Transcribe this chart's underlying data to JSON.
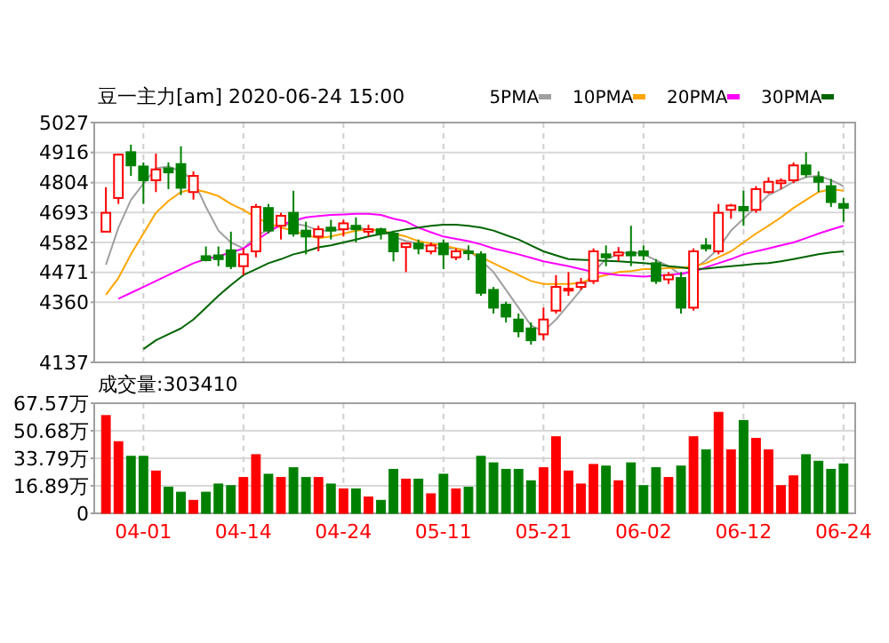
{
  "chart_data": [
    {
      "type": "candlestick",
      "title": "豆一主力[am] 2020-06-24 15:00",
      "categories": [
        null,
        null,
        null,
        null,
        null,
        null,
        null,
        null,
        null,
        null,
        null,
        null,
        null,
        null,
        null,
        null,
        null,
        null,
        null,
        null,
        null,
        null,
        null,
        null,
        null,
        null,
        null,
        null,
        null,
        null,
        null,
        null,
        null,
        null,
        null,
        null,
        null,
        null,
        null,
        null,
        null,
        null,
        null,
        null,
        null,
        null,
        null,
        null,
        null,
        null,
        null,
        null,
        null,
        null,
        null,
        null,
        null,
        null,
        null,
        null
      ],
      "ohlc": [
        [
          4622,
          4787,
          4622,
          4692
        ],
        [
          4747,
          4912,
          4725,
          4908
        ],
        [
          4917,
          4945,
          4829,
          4868
        ],
        [
          4864,
          4879,
          4725,
          4813
        ],
        [
          4813,
          4912,
          4769,
          4853
        ],
        [
          4857,
          4879,
          4780,
          4842
        ],
        [
          4873,
          4939,
          4758,
          4785
        ],
        [
          4769,
          4846,
          4741,
          4829
        ],
        [
          4531,
          4567,
          4512,
          4516
        ],
        [
          4534,
          4567,
          4494,
          4520
        ],
        [
          4553,
          4622,
          4483,
          4494
        ],
        [
          4494,
          4560,
          4461,
          4538
        ],
        [
          4549,
          4725,
          4527,
          4714
        ],
        [
          4710,
          4725,
          4615,
          4626
        ],
        [
          4644,
          4692,
          4593,
          4681
        ],
        [
          4692,
          4774,
          4604,
          4615
        ],
        [
          4626,
          4659,
          4538,
          4604
        ],
        [
          4604,
          4644,
          4549,
          4631
        ],
        [
          4637,
          4666,
          4593,
          4626
        ],
        [
          4631,
          4666,
          4604,
          4653
        ],
        [
          4644,
          4675,
          4582,
          4631
        ],
        [
          4622,
          4648,
          4604,
          4631
        ],
        [
          4631,
          4637,
          4593,
          4615
        ],
        [
          4615,
          4626,
          4512,
          4549
        ],
        [
          4565,
          4582,
          4472,
          4578
        ],
        [
          4578,
          4593,
          4538,
          4560
        ],
        [
          4549,
          4582,
          4538,
          4571
        ],
        [
          4578,
          4593,
          4483,
          4538
        ],
        [
          4527,
          4560,
          4516,
          4549
        ],
        [
          4549,
          4571,
          4516,
          4542
        ],
        [
          4538,
          4549,
          4384,
          4395
        ],
        [
          4406,
          4417,
          4318,
          4340
        ],
        [
          4351,
          4362,
          4285,
          4307
        ],
        [
          4296,
          4318,
          4230,
          4252
        ],
        [
          4263,
          4285,
          4203,
          4219
        ],
        [
          4241,
          4340,
          4219,
          4296
        ],
        [
          4329,
          4461,
          4318,
          4417
        ],
        [
          4406,
          4472,
          4384,
          4410
        ],
        [
          4417,
          4450,
          4406,
          4432
        ],
        [
          4439,
          4560,
          4428,
          4549
        ],
        [
          4538,
          4571,
          4494,
          4527
        ],
        [
          4534,
          4565,
          4512,
          4545
        ],
        [
          4545,
          4644,
          4494,
          4534
        ],
        [
          4549,
          4571,
          4516,
          4534
        ],
        [
          4505,
          4520,
          4428,
          4439
        ],
        [
          4445,
          4472,
          4428,
          4461
        ],
        [
          4450,
          4472,
          4318,
          4340
        ],
        [
          4340,
          4560,
          4329,
          4549
        ],
        [
          4571,
          4598,
          4549,
          4560
        ],
        [
          4549,
          4725,
          4538,
          4692
        ],
        [
          4703,
          4725,
          4670,
          4719
        ],
        [
          4714,
          4774,
          4644,
          4701
        ],
        [
          4703,
          4791,
          4692,
          4780
        ],
        [
          4769,
          4824,
          4763,
          4807
        ],
        [
          4802,
          4820,
          4780,
          4811
        ],
        [
          4813,
          4879,
          4802,
          4868
        ],
        [
          4868,
          4917,
          4824,
          4835
        ],
        [
          4824,
          4846,
          4769,
          4807
        ],
        [
          4791,
          4818,
          4714,
          4732
        ],
        [
          4725,
          4747,
          4659,
          4710
        ]
      ],
      "colors": [
        "#ff0000",
        "#ff0000",
        "#008000",
        "#008000",
        "#ff0000",
        "#008000",
        "#008000",
        "#ff0000",
        "#008000",
        "#008000",
        "#008000",
        "#ff0000",
        "#ff0000",
        "#008000",
        "#ff0000",
        "#008000",
        "#008000",
        "#ff0000",
        "#008000",
        "#ff0000",
        "#008000",
        "#ff0000",
        "#008000",
        "#008000",
        "#ff0000",
        "#008000",
        "#ff0000",
        "#008000",
        "#ff0000",
        "#008000",
        "#008000",
        "#008000",
        "#008000",
        "#008000",
        "#008000",
        "#ff0000",
        "#ff0000",
        "#ff0000",
        "#ff0000",
        "#ff0000",
        "#008000",
        "#ff0000",
        "#008000",
        "#008000",
        "#008000",
        "#ff0000",
        "#008000",
        "#ff0000",
        "#008000",
        "#ff0000",
        "#ff0000",
        "#008000",
        "#ff0000",
        "#ff0000",
        "#ff0000",
        "#ff0000",
        "#008000",
        "#008000",
        "#008000",
        "#008000"
      ],
      "series": [
        {
          "type": "line",
          "name": "5PMA",
          "color": "#a0a0a0",
          "values": [
            4499,
            4637,
            4740,
            4800,
            4857,
            4864,
            4846,
            4813,
            4714,
            4626,
            4582,
            4560,
            4604,
            4631,
            4644,
            4653,
            4644,
            4626,
            4626,
            4631,
            4637,
            4631,
            4626,
            4604,
            4587,
            4578,
            4564,
            4560,
            4560,
            4553,
            4516,
            4472,
            4406,
            4340,
            4274,
            4252,
            4296,
            4351,
            4406,
            4472,
            4520,
            4538,
            4549,
            4538,
            4516,
            4494,
            4461,
            4483,
            4516,
            4560,
            4626,
            4670,
            4714,
            4758,
            4780,
            4807,
            4824,
            4829,
            4813,
            4791
          ]
        },
        {
          "type": "line",
          "name": "10PMA",
          "color": "#ffa500",
          "values": [
            4388,
            4450,
            4538,
            4615,
            4692,
            4736,
            4769,
            4780,
            4769,
            4754,
            4725,
            4703,
            4675,
            4653,
            4637,
            4626,
            4609,
            4598,
            4604,
            4615,
            4626,
            4631,
            4626,
            4615,
            4604,
            4587,
            4578,
            4571,
            4560,
            4549,
            4527,
            4505,
            4483,
            4461,
            4439,
            4428,
            4428,
            4428,
            4432,
            4450,
            4461,
            4472,
            4476,
            4483,
            4483,
            4487,
            4487,
            4494,
            4505,
            4527,
            4549,
            4582,
            4615,
            4644,
            4675,
            4710,
            4740,
            4769,
            4780,
            4774
          ]
        },
        {
          "type": "line",
          "name": "20PMA",
          "color": "#ff00ff",
          "values": [
            null,
            4373,
            4395,
            4417,
            4439,
            4461,
            4483,
            4505,
            4520,
            4531,
            4545,
            4560,
            4590,
            4620,
            4648,
            4662,
            4675,
            4680,
            4684,
            4686,
            4688,
            4688,
            4684,
            4670,
            4660,
            4637,
            4620,
            4604,
            4595,
            4587,
            4575,
            4560,
            4549,
            4538,
            4525,
            4512,
            4503,
            4494,
            4483,
            4472,
            4467,
            4461,
            4458,
            4455,
            4458,
            4461,
            4467,
            4472,
            4490,
            4505,
            4520,
            4538,
            4549,
            4560,
            4571,
            4582,
            4598,
            4615,
            4630,
            4644
          ]
        },
        {
          "type": "line",
          "name": "30PMA",
          "color": "#006400",
          "values": [
            null,
            null,
            null,
            4186,
            4219,
            4241,
            4263,
            4296,
            4340,
            4384,
            4424,
            4461,
            4483,
            4505,
            4520,
            4538,
            4549,
            4564,
            4571,
            4582,
            4593,
            4604,
            4613,
            4622,
            4631,
            4637,
            4644,
            4648,
            4648,
            4644,
            4637,
            4626,
            4609,
            4593,
            4571,
            4549,
            4534,
            4520,
            4518,
            4516,
            4514,
            4512,
            4509,
            4505,
            4501,
            4494,
            4490,
            4483,
            4485,
            4490,
            4494,
            4498,
            4503,
            4505,
            4512,
            4520,
            4529,
            4538,
            4545,
            4549
          ]
        }
      ],
      "ylim": [
        4137,
        5027
      ],
      "yticks": [
        4137,
        4360,
        4471,
        4582,
        4693,
        4804,
        4916,
        5027
      ],
      "grid": true,
      "legend": "top right",
      "tick_labels": "y"
    },
    {
      "type": "bar",
      "title": "成交量:303410",
      "categories": [
        null,
        null,
        null,
        "04-01",
        null,
        null,
        null,
        null,
        null,
        null,
        null,
        "04-14",
        null,
        null,
        null,
        null,
        null,
        null,
        null,
        "04-24",
        null,
        null,
        null,
        null,
        null,
        null,
        null,
        "05-11",
        null,
        null,
        null,
        null,
        null,
        null,
        null,
        "05-21",
        null,
        null,
        null,
        null,
        null,
        null,
        null,
        "06-02",
        null,
        null,
        null,
        null,
        null,
        null,
        null,
        "06-12",
        null,
        null,
        null,
        null,
        null,
        null,
        null,
        "06-24"
      ],
      "values": [
        60,
        44,
        35,
        35,
        26,
        16,
        13,
        8,
        13,
        18,
        17,
        22,
        36,
        24,
        22,
        28,
        22,
        22,
        18,
        15,
        15,
        10,
        8,
        27,
        21,
        21,
        12,
        24,
        15,
        16,
        35,
        31,
        27,
        27,
        20,
        28,
        47,
        26,
        18,
        30,
        29,
        20,
        31,
        17,
        28,
        22,
        29,
        47,
        39,
        62,
        39,
        57,
        46,
        39,
        17,
        23,
        36,
        32,
        27,
        30.34
      ],
      "colors": [
        "#ff0000",
        "#ff0000",
        "#008000",
        "#008000",
        "#ff0000",
        "#008000",
        "#008000",
        "#ff0000",
        "#008000",
        "#008000",
        "#008000",
        "#ff0000",
        "#ff0000",
        "#008000",
        "#ff0000",
        "#008000",
        "#008000",
        "#ff0000",
        "#008000",
        "#ff0000",
        "#008000",
        "#ff0000",
        "#008000",
        "#008000",
        "#ff0000",
        "#008000",
        "#ff0000",
        "#008000",
        "#ff0000",
        "#008000",
        "#008000",
        "#008000",
        "#008000",
        "#008000",
        "#008000",
        "#ff0000",
        "#ff0000",
        "#ff0000",
        "#ff0000",
        "#ff0000",
        "#008000",
        "#ff0000",
        "#008000",
        "#008000",
        "#008000",
        "#ff0000",
        "#008000",
        "#ff0000",
        "#008000",
        "#ff0000",
        "#ff0000",
        "#008000",
        "#ff0000",
        "#ff0000",
        "#ff0000",
        "#ff0000",
        "#008000",
        "#008000",
        "#008000",
        "#008000"
      ],
      "ylim": [
        0,
        67.57
      ],
      "yticks": [
        0,
        {
          "value": 16.89,
          "label": "16.89万"
        },
        {
          "value": 33.79,
          "label": "33.79万"
        },
        {
          "value": 50.68,
          "label": "50.68万"
        },
        {
          "value": 67.57,
          "label": "67.57万"
        }
      ],
      "grid": true
    }
  ]
}
